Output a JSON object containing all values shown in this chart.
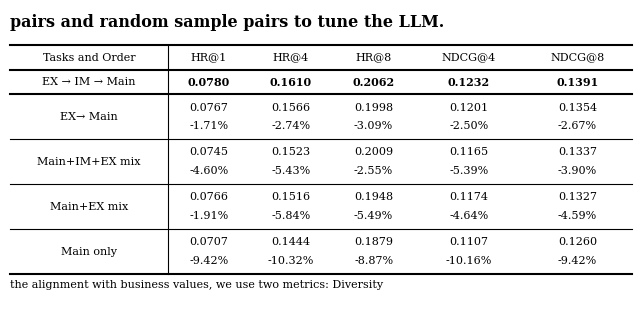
{
  "title_text": "pairs and random sample pairs to tune the LLM.",
  "footer_text": "the alignment with business values, we use two metrics: Diversity",
  "col_headers": [
    "Tasks and Order",
    "HR@1",
    "HR@4",
    "HR@8",
    "NDCG@4",
    "NDCG@8"
  ],
  "best_row": {
    "label": "EX → IM → Main",
    "values": [
      "0.0780",
      "0.1610",
      "0.2062",
      "0.1232",
      "0.1391"
    ]
  },
  "rows": [
    {
      "label": "EX→ Main",
      "line1": [
        "0.0767",
        "0.1566",
        "0.1998",
        "0.1201",
        "0.1354"
      ],
      "line2": [
        "-1.71%",
        "-2.74%",
        "-3.09%",
        "-2.50%",
        "-2.67%"
      ]
    },
    {
      "label": "Main+IM+EX mix",
      "line1": [
        "0.0745",
        "0.1523",
        "0.2009",
        "0.1165",
        "0.1337"
      ],
      "line2": [
        "-4.60%",
        "-5.43%",
        "-2.55%",
        "-5.39%",
        "-3.90%"
      ]
    },
    {
      "label": "Main+EX mix",
      "line1": [
        "0.0766",
        "0.1516",
        "0.1948",
        "0.1174",
        "0.1327"
      ],
      "line2": [
        "-1.91%",
        "-5.84%",
        "-5.49%",
        "-4.64%",
        "-4.59%"
      ]
    },
    {
      "label": "Main only",
      "line1": [
        "0.0707",
        "0.1444",
        "0.1879",
        "0.1107",
        "0.1260"
      ],
      "line2": [
        "-9.42%",
        "-10.32%",
        "-8.87%",
        "-10.16%",
        "-9.42%"
      ]
    }
  ],
  "bg_color": "#ffffff",
  "font_size": 8.0,
  "title_font_size": 11.5
}
